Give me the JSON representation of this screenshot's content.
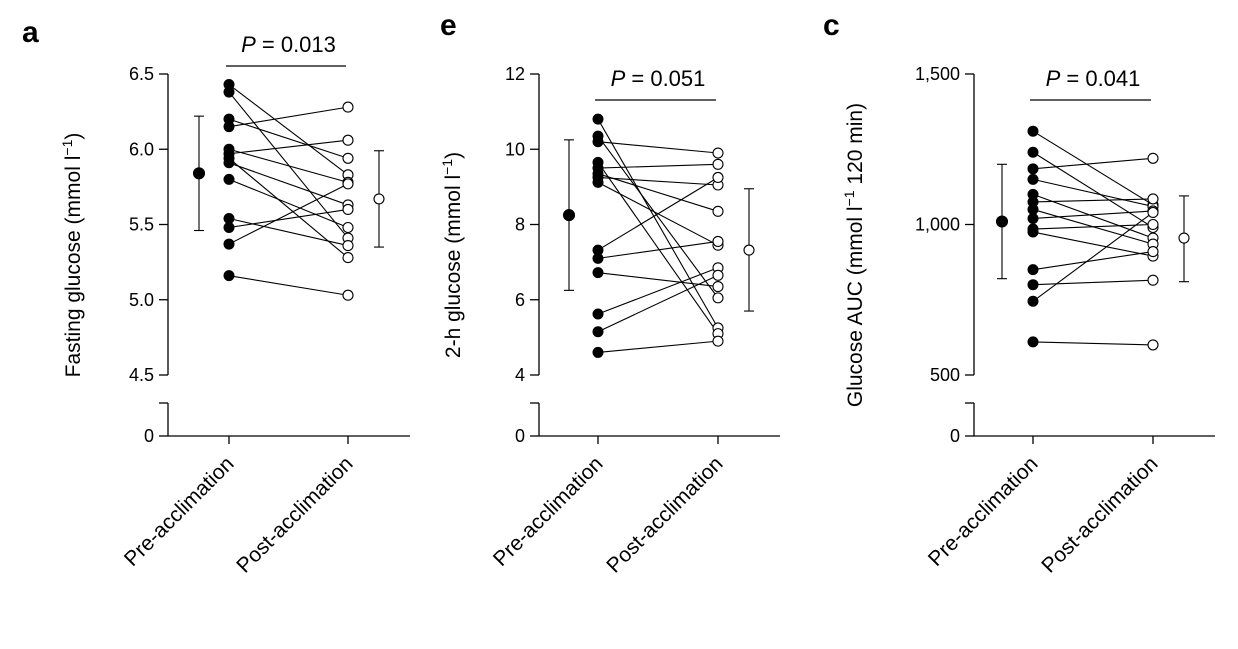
{
  "chart_data": [
    {
      "type": "scatter",
      "panel_label": "a",
      "ylabel": "Fasting glucose (mmol l",
      "ylabel_sup": "−1",
      "ylabel_end": ")",
      "categories": [
        "Pre-acclimation",
        "Post-acclimation"
      ],
      "ylim": [
        4.5,
        6.5
      ],
      "yticks": [
        "6.5",
        "6.0",
        "5.5",
        "5.0",
        "4.5"
      ],
      "ytick_values": [
        6.5,
        6.0,
        5.5,
        5.0,
        4.5
      ],
      "axis_break": true,
      "break_label": "0",
      "p_value": "0.013",
      "pre": [
        6.43,
        6.38,
        6.2,
        6.15,
        6.0,
        5.97,
        5.94,
        5.91,
        5.8,
        5.54,
        5.48,
        5.37,
        5.16
      ],
      "post": [
        5.83,
        5.41,
        5.94,
        6.28,
        5.78,
        6.06,
        5.28,
        5.63,
        5.48,
        5.36,
        5.6,
        5.77,
        5.03
      ],
      "pre_summary": {
        "mean": 5.84,
        "sd_low": 5.46,
        "sd_high": 6.22
      },
      "post_summary": {
        "mean": 5.67,
        "sd_low": 5.35,
        "sd_high": 5.99
      }
    },
    {
      "type": "scatter",
      "panel_label": "e",
      "ylabel": "2-h glucose (mmol l",
      "ylabel_sup": "−1",
      "ylabel_end": ")",
      "categories": [
        "Pre-acclimation",
        "Post-acclimation"
      ],
      "ylim": [
        4,
        12
      ],
      "yticks": [
        "12",
        "10",
        "8",
        "6",
        "4"
      ],
      "ytick_values": [
        12,
        10,
        8,
        6,
        4
      ],
      "axis_break": true,
      "break_label": "0",
      "p_value": "0.051",
      "pre": [
        10.8,
        10.35,
        10.2,
        9.65,
        9.5,
        9.35,
        9.25,
        9.12,
        7.32,
        7.1,
        6.72,
        5.62,
        5.15,
        4.6
      ],
      "post": [
        5.25,
        6.05,
        9.9,
        5.1,
        9.6,
        8.35,
        9.05,
        7.45,
        9.25,
        7.55,
        6.35,
        6.85,
        6.65,
        4.9
      ],
      "pre_summary": {
        "mean": 8.25,
        "sd_low": 6.25,
        "sd_high": 10.25
      },
      "post_summary": {
        "mean": 7.32,
        "sd_low": 5.7,
        "sd_high": 8.95
      }
    },
    {
      "type": "scatter",
      "panel_label": "c",
      "ylabel": "Glucose AUC (mmol l",
      "ylabel_sup": "−1",
      "ylabel_end": " 120 min)",
      "categories": [
        "Pre-acclimation",
        "Post-acclimation"
      ],
      "ylim": [
        500,
        1500
      ],
      "yticks": [
        "1,500",
        "1,000",
        "500"
      ],
      "ytick_values": [
        1500,
        1000,
        500
      ],
      "axis_break": true,
      "break_label": "0",
      "p_value": "0.041",
      "pre": [
        1310,
        1240,
        1185,
        1150,
        1100,
        1075,
        1050,
        1020,
        985,
        975,
        850,
        800,
        745,
        610
      ],
      "post": [
        1065,
        990,
        1220,
        1060,
        955,
        1085,
        935,
        1045,
        1000,
        895,
        910,
        815,
        1040,
        600
      ],
      "pre_summary": {
        "mean": 1010,
        "sd_low": 820,
        "sd_high": 1200
      },
      "post_summary": {
        "mean": 955,
        "sd_low": 810,
        "sd_high": 1095
      }
    }
  ]
}
